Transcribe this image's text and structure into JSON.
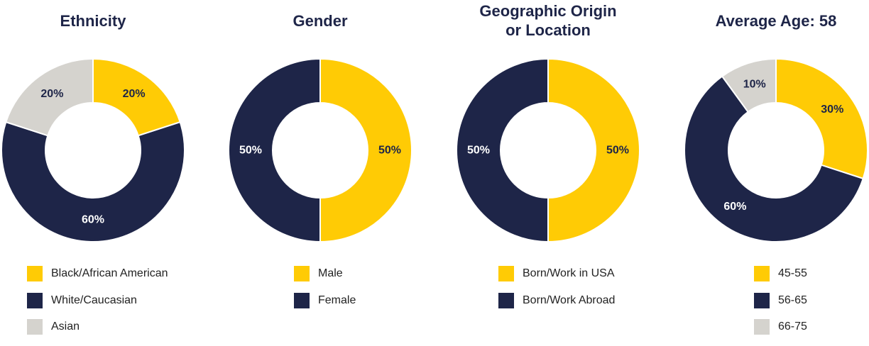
{
  "colors": {
    "yellow": "#FFCB05",
    "navy": "#1E2548",
    "gray": "#D5D3CE",
    "label_on_light": "#1E2548",
    "label_on_dark": "#FFFFFF"
  },
  "chart_data": [
    {
      "type": "pie",
      "variant": "donut",
      "title": "Ethnicity",
      "series": [
        {
          "name": "Black/African American",
          "value": 20,
          "label": "20%",
          "color": "#FFCB05"
        },
        {
          "name": "White/Caucasian",
          "value": 60,
          "label": "60%",
          "color": "#1E2548"
        },
        {
          "name": "Asian",
          "value": 20,
          "label": "20%",
          "color": "#D5D3CE"
        }
      ],
      "legend_position": "bottom"
    },
    {
      "type": "pie",
      "variant": "donut",
      "title": "Gender",
      "series": [
        {
          "name": "Male",
          "value": 50,
          "label": "50%",
          "color": "#FFCB05"
        },
        {
          "name": "Female",
          "value": 50,
          "label": "50%",
          "color": "#1E2548"
        }
      ],
      "legend_position": "bottom"
    },
    {
      "type": "pie",
      "variant": "donut",
      "title": "Geographic Origin or Location",
      "title_lines": [
        "Geographic Origin",
        "or Location"
      ],
      "series": [
        {
          "name": "Born/Work in USA",
          "value": 50,
          "label": "50%",
          "color": "#FFCB05"
        },
        {
          "name": "Born/Work Abroad",
          "value": 50,
          "label": "50%",
          "color": "#1E2548"
        }
      ],
      "legend_position": "bottom"
    },
    {
      "type": "pie",
      "variant": "donut",
      "title": "Average Age: 58",
      "series": [
        {
          "name": "45-55",
          "value": 30,
          "label": "30%",
          "color": "#FFCB05"
        },
        {
          "name": "56-65",
          "value": 60,
          "label": "60%",
          "color": "#1E2548"
        },
        {
          "name": "66-75",
          "value": 10,
          "label": "10%",
          "color": "#D5D3CE"
        }
      ],
      "legend_position": "bottom"
    }
  ]
}
